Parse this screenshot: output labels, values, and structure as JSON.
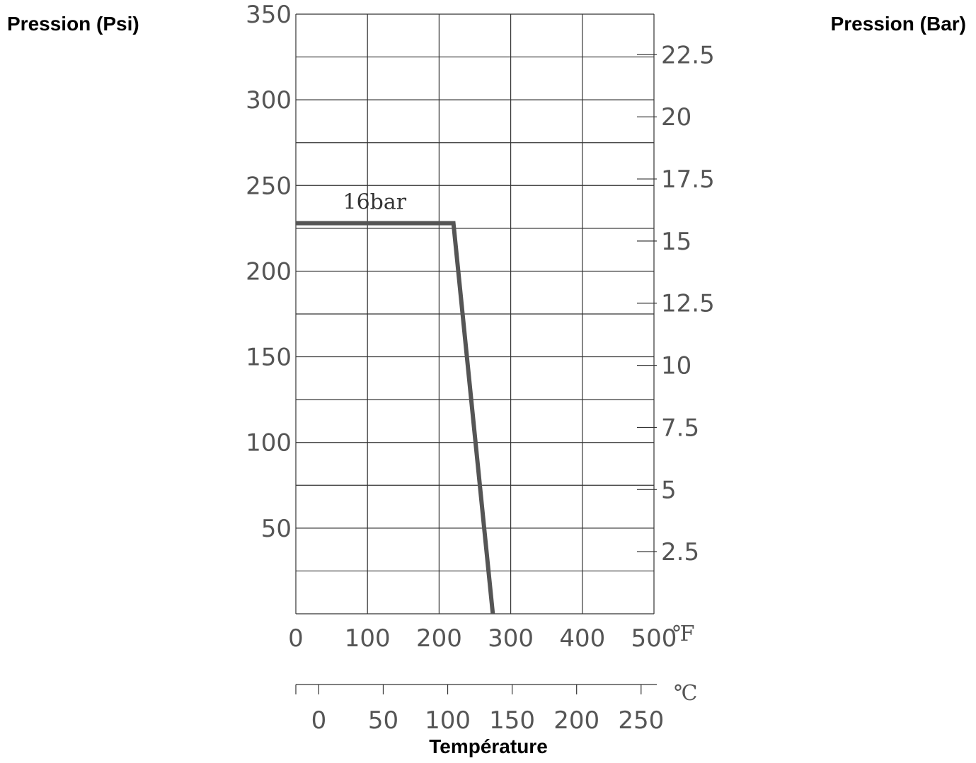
{
  "chart_data": {
    "type": "line",
    "title": "",
    "ylabel_left": "Pression (Psi)",
    "ylabel_right": "Pression (Bar)",
    "xlabel": "Température",
    "x_unit_primary": "℉",
    "x_unit_secondary": "℃",
    "grid": true,
    "y_left_ticks": [
      "350",
      "300",
      "250",
      "200",
      "150",
      "100",
      "50"
    ],
    "y_left_range": [
      0,
      350
    ],
    "y_right_ticks": [
      "22.5",
      "20",
      "17.5",
      "15",
      "12.5",
      "10",
      "7.5",
      "5",
      "2.5"
    ],
    "x_primary_ticks": [
      "0",
      "100",
      "200",
      "300",
      "400",
      "500"
    ],
    "x_primary_range": [
      0,
      500
    ],
    "x_secondary_ticks": [
      "0",
      "50",
      "100",
      "150",
      "200",
      "250"
    ],
    "series": [
      {
        "name": "16bar",
        "x": [
          0,
          220,
          275
        ],
        "y": [
          228,
          228,
          0
        ]
      }
    ],
    "line_color": "#555555"
  }
}
